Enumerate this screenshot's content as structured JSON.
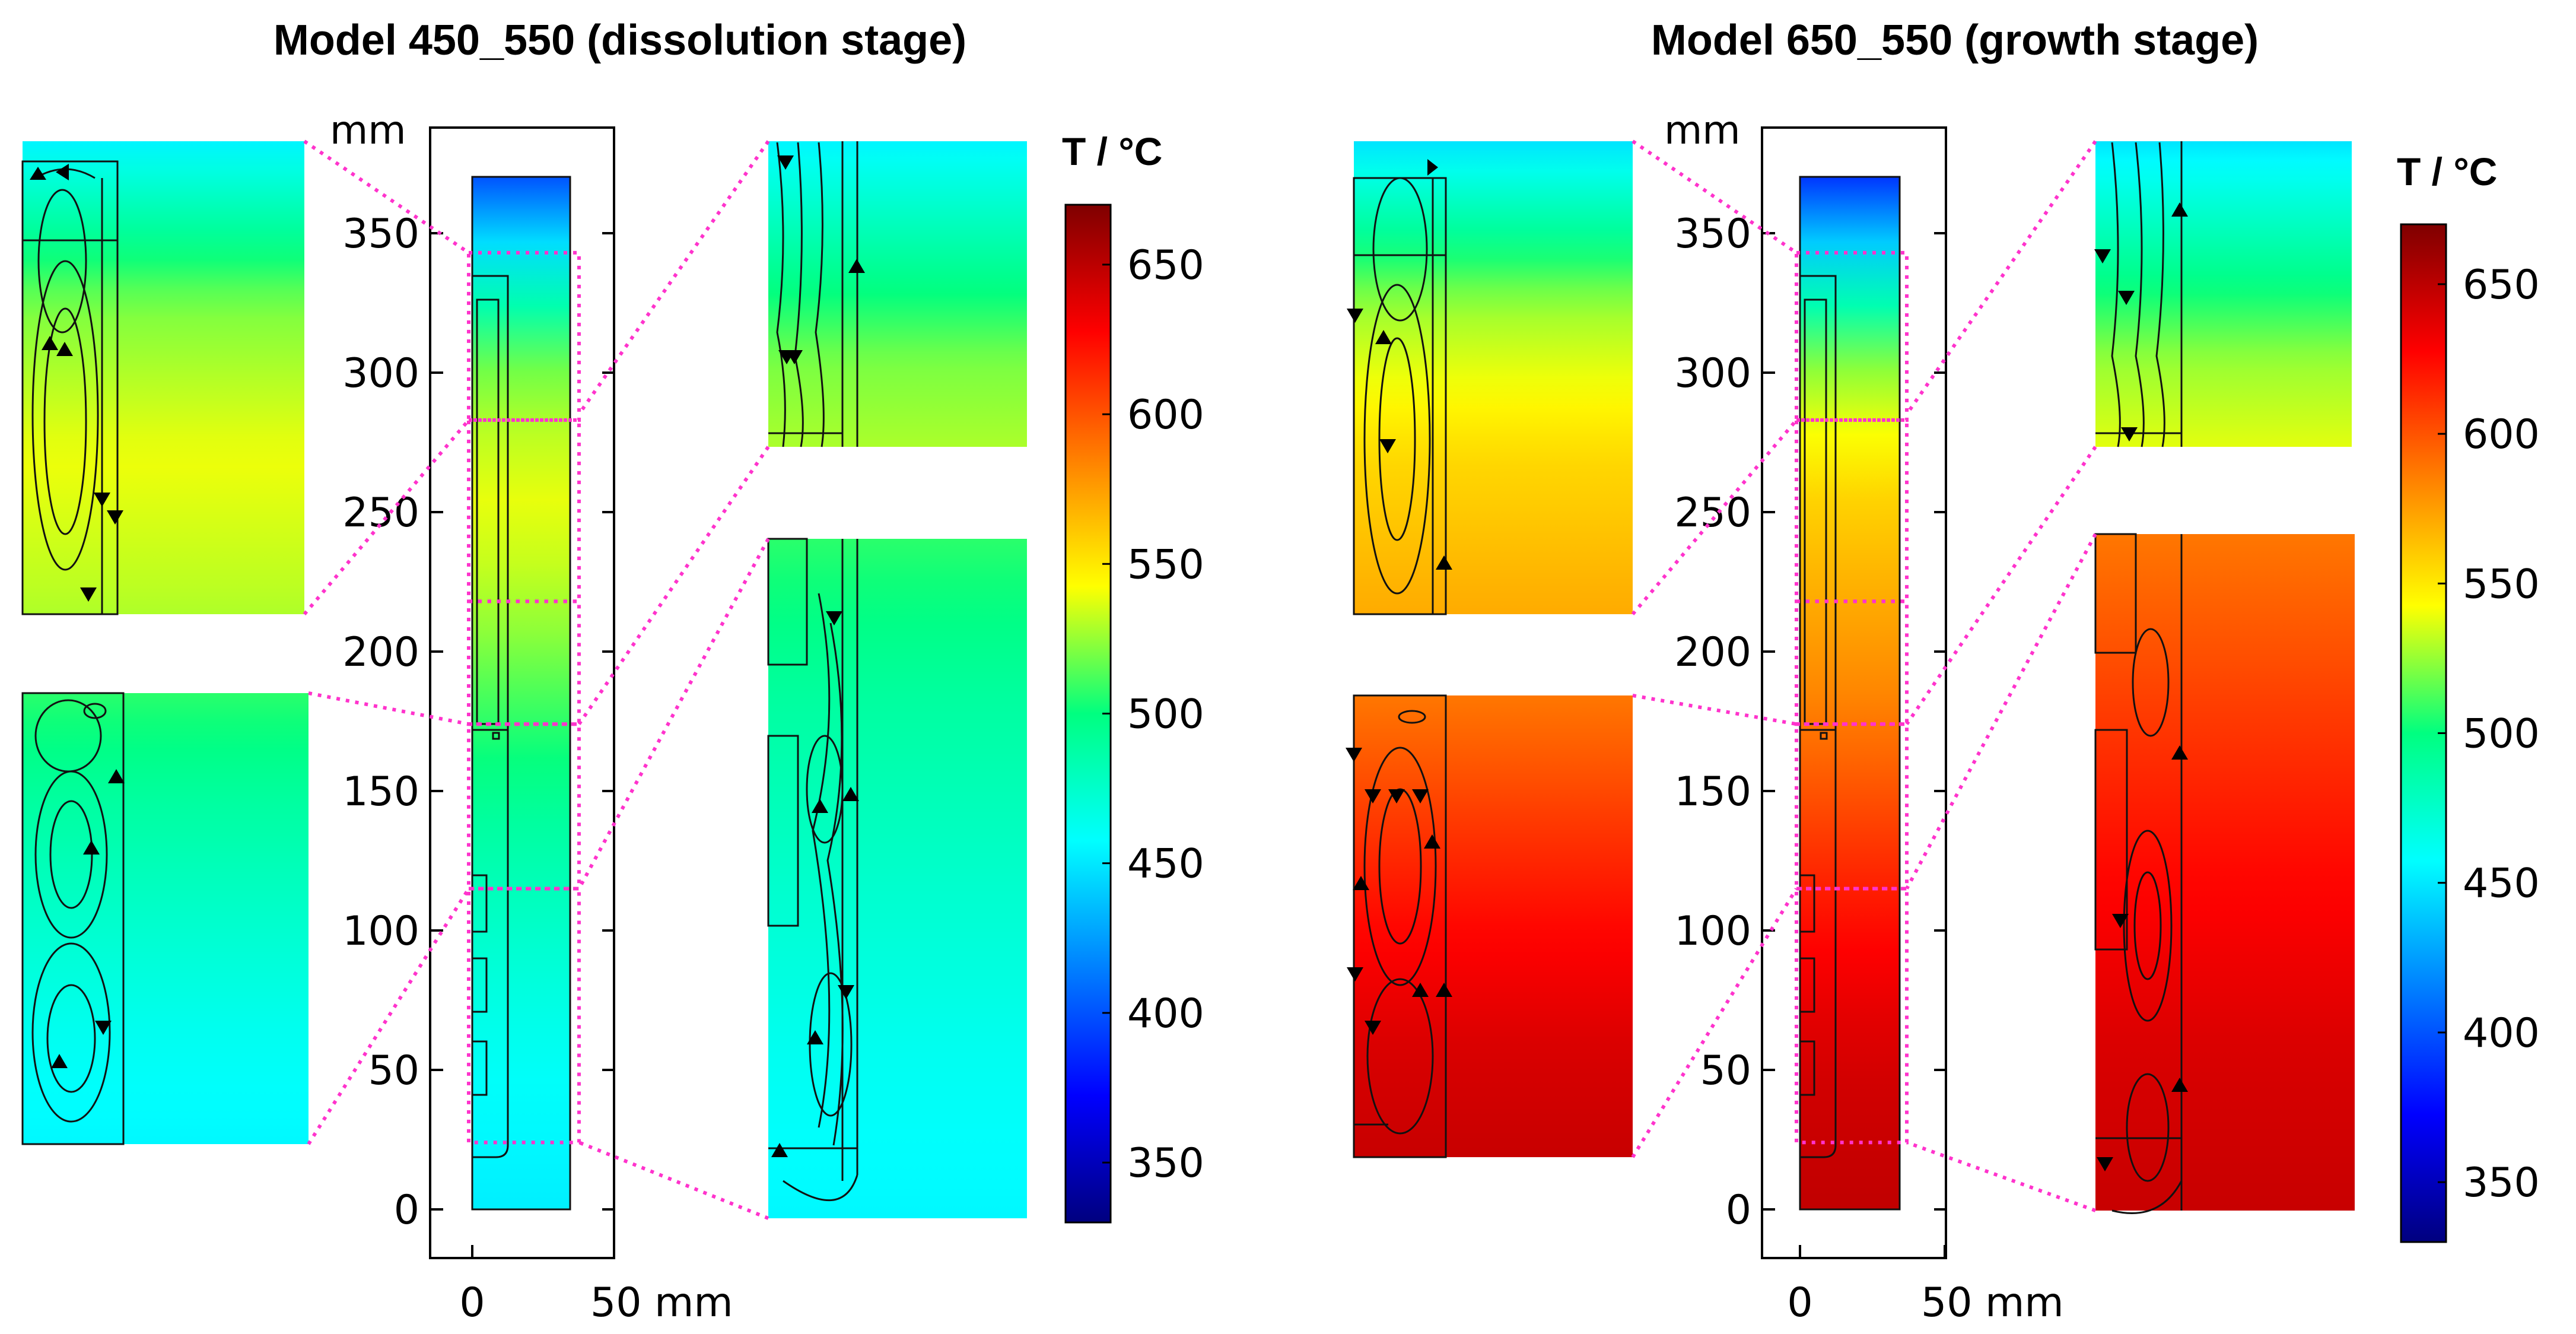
{
  "chart_data": [
    {
      "type": "heatmap",
      "title": "Model 450_550 (dissolution stage)",
      "y_unit": "mm",
      "x_unit": "mm",
      "y_ticks": [
        0,
        50,
        100,
        150,
        200,
        250,
        300,
        350
      ],
      "x_ticks": [
        {
          "value": 0,
          "label": "0"
        },
        {
          "value": 50,
          "label": "50 mm"
        }
      ],
      "domain_height_mm": 370,
      "domain_width_mm": 35,
      "zoom_windows_mm": [
        [
          283,
          343
        ],
        [
          174,
          218
        ],
        [
          115,
          174
        ],
        [
          24,
          115
        ]
      ],
      "colorbar": {
        "title": "T / °C",
        "ticks": [
          350,
          400,
          450,
          500,
          550,
          600,
          650
        ],
        "range": [
          330,
          670
        ],
        "colormap": "rainbow"
      },
      "temperature_profile": {
        "height_mm": [
          0,
          30,
          60,
          100,
          140,
          180,
          220,
          260,
          300,
          340,
          370
        ],
        "temperature_C": [
          452,
          456,
          462,
          475,
          490,
          510,
          530,
          540,
          520,
          460,
          400
        ]
      }
    },
    {
      "type": "heatmap",
      "title": "Model 650_550 (growth stage)",
      "y_unit": "mm",
      "x_unit": "mm",
      "y_ticks": [
        0,
        50,
        100,
        150,
        200,
        250,
        300,
        350
      ],
      "x_ticks": [
        {
          "value": 0,
          "label": "0"
        },
        {
          "value": 50,
          "label": "50 mm"
        }
      ],
      "domain_height_mm": 370,
      "domain_width_mm": 35,
      "zoom_windows_mm": [
        [
          283,
          343
        ],
        [
          174,
          218
        ],
        [
          115,
          174
        ],
        [
          24,
          115
        ]
      ],
      "colorbar": {
        "title": "T / °C",
        "ticks": [
          350,
          400,
          450,
          500,
          550,
          600,
          650
        ],
        "range": [
          330,
          670
        ],
        "colormap": "rainbow"
      },
      "temperature_profile": {
        "height_mm": [
          0,
          30,
          60,
          100,
          140,
          180,
          220,
          260,
          300,
          340,
          370
        ],
        "temperature_C": [
          648,
          645,
          640,
          625,
          605,
          585,
          570,
          555,
          525,
          455,
          390
        ]
      }
    }
  ],
  "colors": {
    "connector": "#ff33cc",
    "colormap_stops": [
      "#00007f",
      "#0000ff",
      "#0080ff",
      "#00ffff",
      "#00ff80",
      "#ffff00",
      "#ff8000",
      "#ff0000",
      "#7f0000"
    ]
  }
}
